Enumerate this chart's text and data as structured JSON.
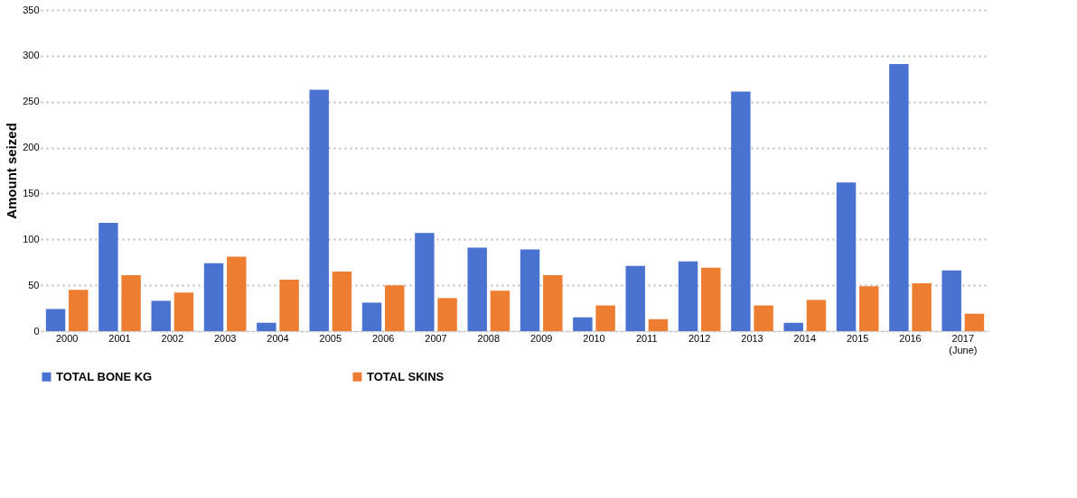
{
  "chart_data": {
    "type": "bar",
    "ylabel": "Amount seized",
    "categories": [
      "2000",
      "2001",
      "2002",
      "2003",
      "2004",
      "2005",
      "2006",
      "2007",
      "2008",
      "2009",
      "2010",
      "2011",
      "2012",
      "2013",
      "2014",
      "2015",
      "2016",
      "2017\n(June)"
    ],
    "series": [
      {
        "name": "TOTAL BONE KG",
        "color": "#4a72d0",
        "values": [
          24,
          118,
          33,
          74,
          9,
          263,
          31,
          107,
          91,
          89,
          15,
          71,
          76,
          261,
          9,
          162,
          291,
          66
        ]
      },
      {
        "name": "TOTAL SKINS",
        "color": "#ed7d31",
        "values": [
          45,
          61,
          42,
          81,
          56,
          65,
          50,
          36,
          44,
          61,
          28,
          13,
          69,
          28,
          34,
          49,
          52,
          19
        ]
      }
    ],
    "ylim": [
      0,
      350
    ],
    "yticks": [
      0,
      50,
      100,
      150,
      200,
      250,
      300,
      350
    ],
    "grid": "y",
    "legend": "bottom"
  }
}
